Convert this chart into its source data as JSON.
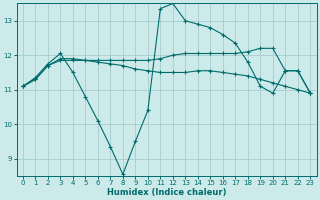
{
  "background_color": "#cceaea",
  "grid_color": "#b0d8d8",
  "line_color": "#006b6b",
  "xlabel": "Humidex (Indice chaleur)",
  "xlim": [
    -0.5,
    23.5
  ],
  "ylim": [
    8.5,
    13.5
  ],
  "yticks": [
    9,
    10,
    11,
    12,
    13
  ],
  "xticks": [
    0,
    1,
    2,
    3,
    4,
    5,
    6,
    7,
    8,
    9,
    10,
    11,
    12,
    13,
    14,
    15,
    16,
    17,
    18,
    19,
    20,
    21,
    22,
    23
  ],
  "series": [
    {
      "x": [
        0,
        1,
        2,
        3,
        4,
        5,
        6,
        7,
        8,
        9,
        10,
        11,
        12,
        13,
        14,
        15,
        16,
        17,
        18,
        19,
        20,
        21,
        22,
        23
      ],
      "y": [
        11.1,
        11.35,
        11.75,
        12.05,
        11.5,
        10.8,
        10.1,
        9.35,
        8.55,
        9.5,
        10.4,
        13.35,
        13.5,
        13.0,
        12.9,
        12.8,
        12.6,
        12.35,
        11.8,
        11.1,
        10.9,
        11.55,
        11.55,
        10.9
      ]
    },
    {
      "x": [
        0,
        1,
        2,
        3,
        4,
        5,
        6,
        7,
        8,
        9,
        10,
        11,
        12,
        13,
        14,
        15,
        16,
        17,
        18,
        19,
        20,
        21,
        22,
        23
      ],
      "y": [
        11.1,
        11.3,
        11.7,
        11.85,
        11.85,
        11.85,
        11.85,
        11.85,
        11.85,
        11.85,
        11.85,
        11.9,
        12.0,
        12.05,
        12.05,
        12.05,
        12.05,
        12.05,
        12.1,
        12.2,
        12.2,
        11.55,
        11.55,
        10.9
      ]
    },
    {
      "x": [
        0,
        1,
        2,
        3,
        4,
        5,
        6,
        7,
        8,
        9,
        10,
        11,
        12,
        13,
        14,
        15,
        16,
        17,
        18,
        19,
        20,
        21,
        22,
        23
      ],
      "y": [
        11.1,
        11.3,
        11.7,
        11.9,
        11.9,
        11.85,
        11.8,
        11.75,
        11.7,
        11.6,
        11.55,
        11.5,
        11.5,
        11.5,
        11.55,
        11.55,
        11.5,
        11.45,
        11.4,
        11.3,
        11.2,
        11.1,
        11.0,
        10.9
      ]
    }
  ]
}
